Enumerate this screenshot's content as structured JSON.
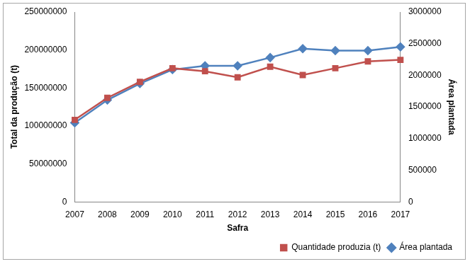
{
  "chart_data": {
    "type": "line",
    "categories": [
      "2007",
      "2008",
      "2009",
      "2010",
      "2011",
      "2012",
      "2013",
      "2014",
      "2015",
      "2016",
      "2017"
    ],
    "xlabel": "Safra",
    "ylabel": "Total da produção (t)",
    "y2label": "Área plantada",
    "ylim": [
      0,
      250000000
    ],
    "yticks": [
      0,
      50000000,
      100000000,
      150000000,
      200000000,
      250000000
    ],
    "y2lim": [
      0,
      3000000
    ],
    "y2ticks": [
      0,
      500000,
      1000000,
      1500000,
      2000000,
      2500000,
      3000000
    ],
    "grid": false,
    "legend": "bottom",
    "series": [
      {
        "name": "Quantidade produzia (t)",
        "color": "#c0504d",
        "marker": "square",
        "values": [
          108000000,
          137000000,
          158000000,
          176000000,
          172000000,
          164000000,
          178000000,
          167000000,
          176000000,
          185000000,
          187000000
        ]
      },
      {
        "name": "Área plantada",
        "color": "#4f81bd",
        "marker": "diamond",
        "axis": "y2",
        "values": [
          1250000,
          1610000,
          1870000,
          2090000,
          2150000,
          2150000,
          2280000,
          2420000,
          2390000,
          2390000,
          2450000
        ]
      }
    ]
  }
}
